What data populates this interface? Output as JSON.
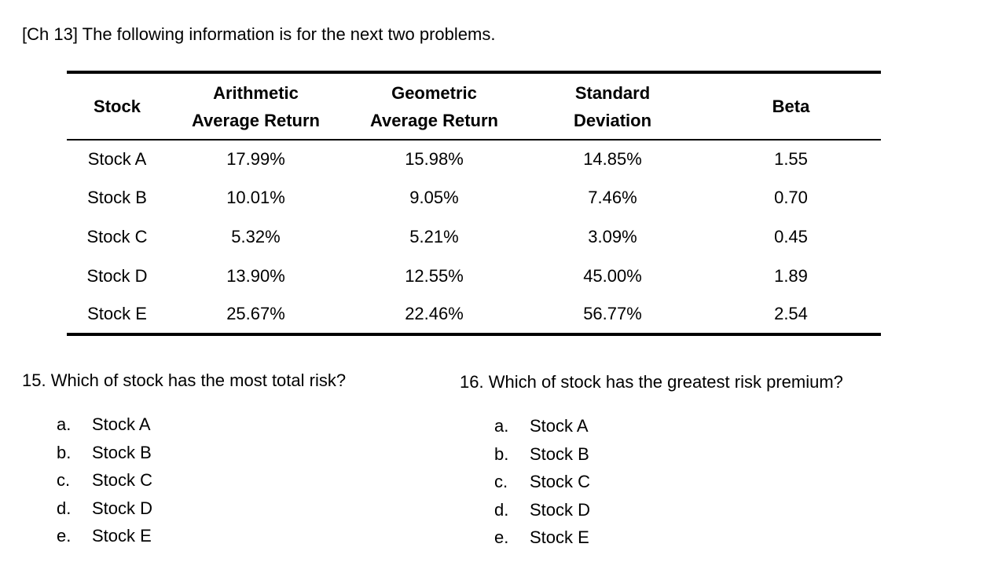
{
  "intro": "[Ch 13] The following information is for the next two problems.",
  "colors": {
    "text": "#000000",
    "background": "#ffffff"
  },
  "table": {
    "headers": [
      {
        "line1": "Stock",
        "line2": ""
      },
      {
        "line1": "Arithmetic",
        "line2": "Average Return"
      },
      {
        "line1": "Geometric",
        "line2": "Average Return"
      },
      {
        "line1": "Standard",
        "line2": "Deviation"
      },
      {
        "line1": "Beta",
        "line2": ""
      }
    ],
    "rows": [
      [
        "Stock A",
        "17.99%",
        "15.98%",
        "14.85%",
        "1.55"
      ],
      [
        "Stock B",
        "10.01%",
        "9.05%",
        "7.46%",
        "0.70"
      ],
      [
        "Stock C",
        "5.32%",
        "5.21%",
        "3.09%",
        "0.45"
      ],
      [
        "Stock D",
        "13.90%",
        "12.55%",
        "45.00%",
        "1.89"
      ],
      [
        "Stock E",
        "25.67%",
        "22.46%",
        "56.77%",
        "2.54"
      ]
    ]
  },
  "questions": [
    {
      "number": "15.",
      "text": "Which of stock has the most total risk?",
      "options": [
        {
          "letter": "a.",
          "label": "Stock A"
        },
        {
          "letter": "b.",
          "label": "Stock B"
        },
        {
          "letter": "c.",
          "label": "Stock C"
        },
        {
          "letter": "d.",
          "label": "Stock D"
        },
        {
          "letter": "e.",
          "label": "Stock E"
        }
      ]
    },
    {
      "number": "16.",
      "text": "Which of stock has the greatest risk premium?",
      "options": [
        {
          "letter": "a.",
          "label": "Stock A"
        },
        {
          "letter": "b.",
          "label": "Stock B"
        },
        {
          "letter": "c.",
          "label": "Stock C"
        },
        {
          "letter": "d.",
          "label": "Stock D"
        },
        {
          "letter": "e.",
          "label": "Stock E"
        }
      ]
    }
  ]
}
